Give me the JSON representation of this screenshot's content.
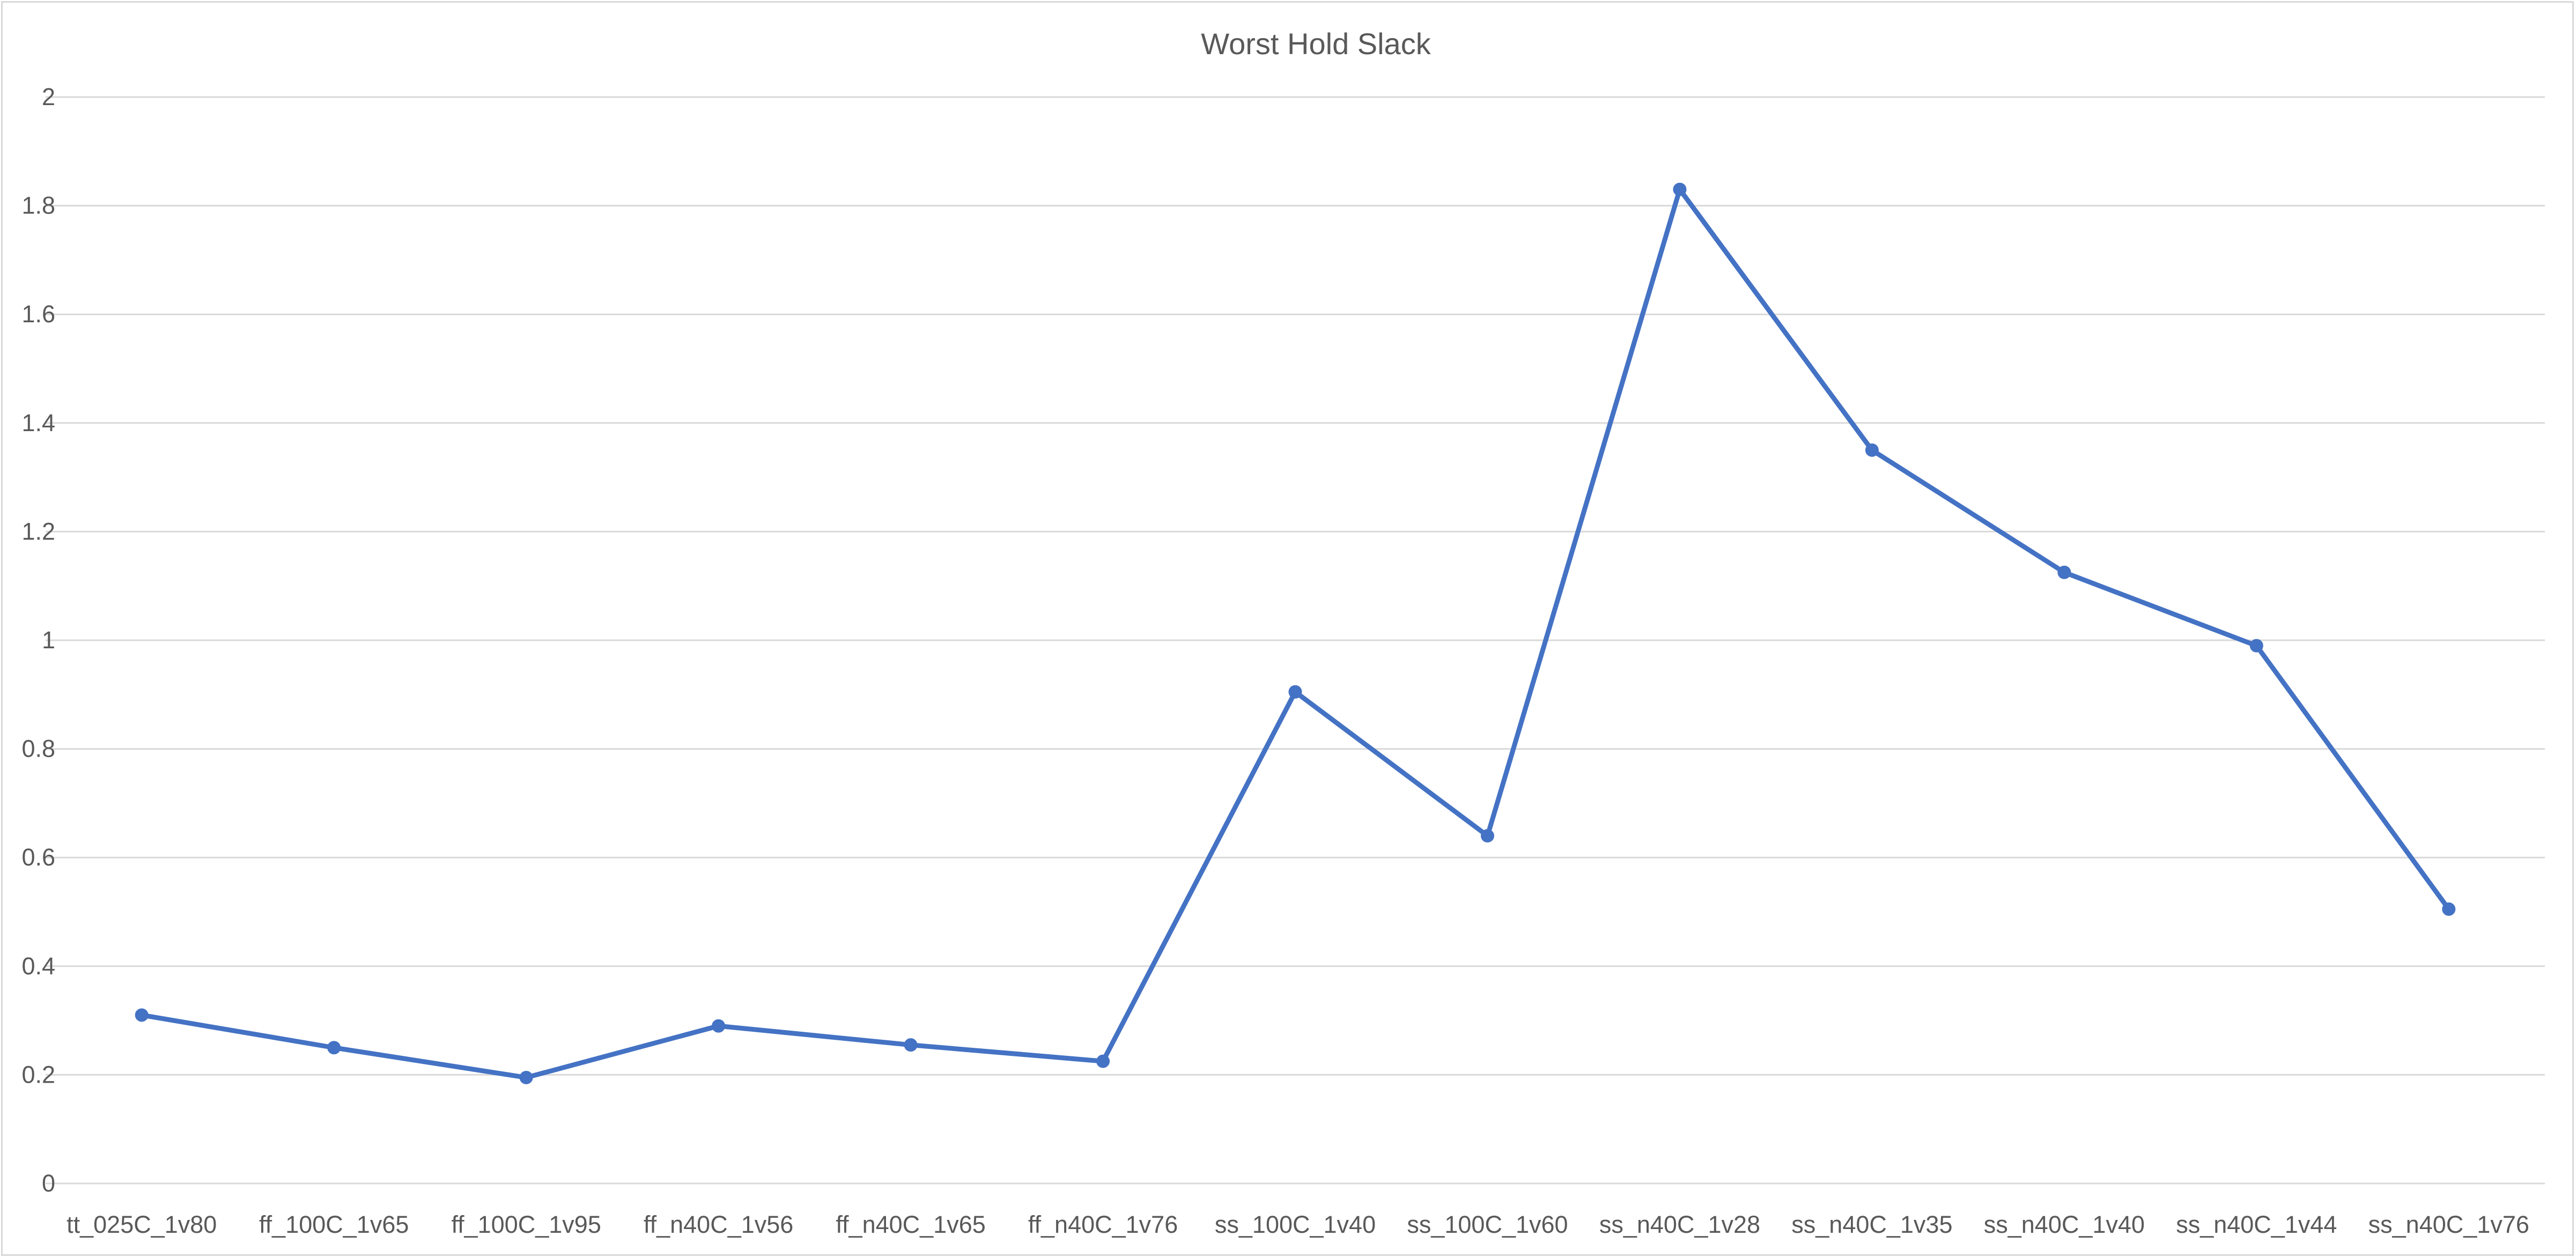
{
  "chart_data": {
    "type": "line",
    "title": "Worst Hold Slack",
    "xlabel": "",
    "ylabel": "",
    "categories": [
      "tt_025C_1v80",
      "ff_100C_1v65",
      "ff_100C_1v95",
      "ff_n40C_1v56",
      "ff_n40C_1v65",
      "ff_n40C_1v76",
      "ss_100C_1v40",
      "ss_100C_1v60",
      "ss_n40C_1v28",
      "ss_n40C_1v35",
      "ss_n40C_1v40",
      "ss_n40C_1v44",
      "ss_n40C_1v76"
    ],
    "series": [
      {
        "values": [
          0.31,
          0.25,
          0.195,
          0.29,
          0.255,
          0.225,
          0.905,
          0.64,
          1.83,
          1.35,
          1.125,
          0.99,
          0.505
        ]
      }
    ],
    "ylim": [
      0,
      2
    ],
    "yticks": [
      "0",
      "0.2",
      "0.4",
      "0.6",
      "0.8",
      "1",
      "1.2",
      "1.4",
      "1.6",
      "1.8",
      "2"
    ],
    "grid": true,
    "legend": "none",
    "colors": {
      "line": "#4472c4",
      "grid": "#d9d9d9",
      "text": "#595959"
    }
  }
}
